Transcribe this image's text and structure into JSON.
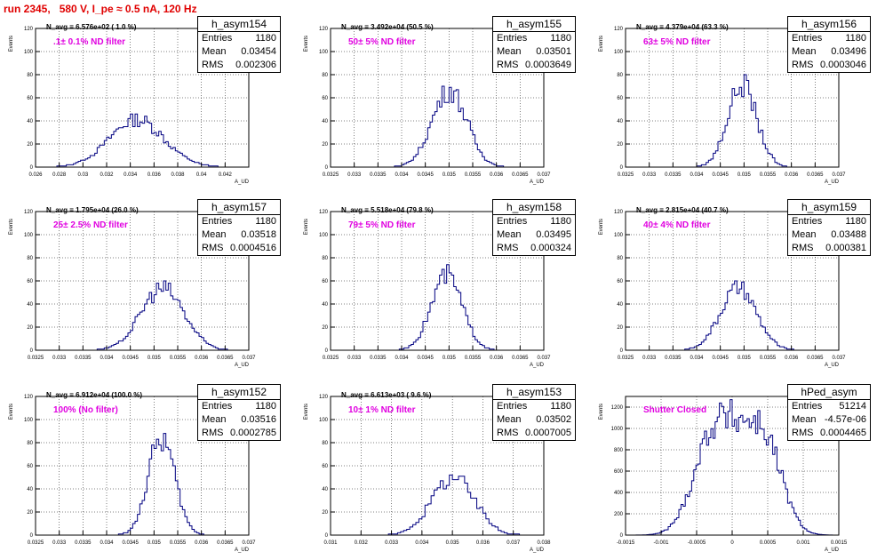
{
  "page": {
    "title": "run 2345,   580 V, I_pe ≈ 0.5 nA, 120 Hz"
  },
  "chart_data": [
    {
      "type": "bar",
      "name": "h_asym154",
      "xlabel": "A_UD",
      "ylabel": "Events",
      "xlim": [
        0.026,
        0.044
      ],
      "ylim": [
        0,
        120
      ],
      "xticks": [
        "0.026",
        "0.028",
        "0.03",
        "0.032",
        "0.034",
        "0.036",
        "0.038",
        "0.04",
        "0.042"
      ],
      "yticks": [
        "0",
        "20",
        "40",
        "60",
        "80",
        "100",
        "120"
      ],
      "grid": true,
      "navg": "N_avg = 6.576e+02 ( 1.0 %)",
      "filter": ".1± 0.1% ND filter",
      "stats": {
        "Entries": "1180",
        "Mean": "0.03454",
        "RMS": "0.002306"
      },
      "mean": 0.03454,
      "rms": 0.002306,
      "entries": 1180,
      "binw": 0.0002
    },
    {
      "type": "bar",
      "name": "h_asym155",
      "xlabel": "A_UD",
      "ylabel": "Events",
      "xlim": [
        0.0325,
        0.037
      ],
      "ylim": [
        0,
        120
      ],
      "xticks": [
        "0.0325",
        "0.033",
        "0.0335",
        "0.034",
        "0.0345",
        "0.035",
        "0.0355",
        "0.036",
        "0.0365",
        "0.037"
      ],
      "yticks": [
        "0",
        "20",
        "40",
        "60",
        "80",
        "100",
        "120"
      ],
      "grid": true,
      "navg": "N_avg = 3.492e+04 (50.5 %)",
      "filter": "50± 5% ND filter",
      "stats": {
        "Entries": "1180",
        "Mean": "0.03501",
        "RMS": "0.0003649"
      },
      "mean": 0.03501,
      "rms": 0.0003649,
      "entries": 1180,
      "binw": 5e-05
    },
    {
      "type": "bar",
      "name": "h_asym156",
      "xlabel": "A_UD",
      "ylabel": "Events",
      "xlim": [
        0.0325,
        0.037
      ],
      "ylim": [
        0,
        120
      ],
      "xticks": [
        "0.0325",
        "0.033",
        "0.0335",
        "0.034",
        "0.0345",
        "0.035",
        "0.0355",
        "0.036",
        "0.0365",
        "0.037"
      ],
      "yticks": [
        "0",
        "20",
        "40",
        "60",
        "80",
        "100",
        "120"
      ],
      "grid": true,
      "navg": "N_avg = 4.379e+04 (63.3 %)",
      "filter": "63± 5% ND filter",
      "stats": {
        "Entries": "1180",
        "Mean": "0.03496",
        "RMS": "0.0003046"
      },
      "mean": 0.03496,
      "rms": 0.0003046,
      "entries": 1180,
      "binw": 5e-05
    },
    {
      "type": "bar",
      "name": "h_asym157",
      "xlabel": "A_UD",
      "ylabel": "Events",
      "xlim": [
        0.0325,
        0.037
      ],
      "ylim": [
        0,
        120
      ],
      "xticks": [
        "0.0325",
        "0.033",
        "0.0335",
        "0.034",
        "0.0345",
        "0.035",
        "0.0355",
        "0.036",
        "0.0365",
        "0.037"
      ],
      "yticks": [
        "0",
        "20",
        "40",
        "60",
        "80",
        "100",
        "120"
      ],
      "grid": true,
      "navg": "N_avg = 1.795e+04 (26.0 %)",
      "filter": "25± 2.5% ND filter",
      "stats": {
        "Entries": "1180",
        "Mean": "0.03518",
        "RMS": "0.0004516"
      },
      "mean": 0.03518,
      "rms": 0.0004516,
      "entries": 1180,
      "binw": 5e-05
    },
    {
      "type": "bar",
      "name": "h_asym158",
      "xlabel": "A_UD",
      "ylabel": "Events",
      "xlim": [
        0.0325,
        0.037
      ],
      "ylim": [
        0,
        120
      ],
      "xticks": [
        "0.0325",
        "0.033",
        "0.0335",
        "0.034",
        "0.0345",
        "0.035",
        "0.0355",
        "0.036",
        "0.0365",
        "0.037"
      ],
      "yticks": [
        "0",
        "20",
        "40",
        "60",
        "80",
        "100",
        "120"
      ],
      "grid": true,
      "navg": "N_avg = 5.518e+04 (79.8 %)",
      "filter": "79± 5% ND filter",
      "stats": {
        "Entries": "1180",
        "Mean": "0.03495",
        "RMS": "0.000324"
      },
      "mean": 0.03495,
      "rms": 0.000324,
      "entries": 1180,
      "binw": 5e-05
    },
    {
      "type": "bar",
      "name": "h_asym159",
      "xlabel": "A_UD",
      "ylabel": "Events",
      "xlim": [
        0.0325,
        0.037
      ],
      "ylim": [
        0,
        120
      ],
      "xticks": [
        "0.0325",
        "0.033",
        "0.0335",
        "0.034",
        "0.0345",
        "0.035",
        "0.0355",
        "0.036",
        "0.0365",
        "0.037"
      ],
      "yticks": [
        "0",
        "20",
        "40",
        "60",
        "80",
        "100",
        "120"
      ],
      "grid": true,
      "navg": "N_avg = 2.815e+04 (40.7 %)",
      "filter": "40± 4% ND filter",
      "stats": {
        "Entries": "1180",
        "Mean": "0.03488",
        "RMS": "0.000381"
      },
      "mean": 0.03488,
      "rms": 0.000381,
      "entries": 1180,
      "binw": 5e-05
    },
    {
      "type": "bar",
      "name": "h_asym152",
      "xlabel": "A_UD",
      "ylabel": "Events",
      "xlim": [
        0.0325,
        0.037
      ],
      "ylim": [
        0,
        120
      ],
      "xticks": [
        "0.0325",
        "0.033",
        "0.0335",
        "0.034",
        "0.0345",
        "0.035",
        "0.0355",
        "0.036",
        "0.0365",
        "0.037"
      ],
      "yticks": [
        "0",
        "20",
        "40",
        "60",
        "80",
        "100",
        "120"
      ],
      "grid": true,
      "navg": "N_avg = 6.912e+04 (100.0 %)",
      "filter": "100% (No filter)",
      "stats": {
        "Entries": "1180",
        "Mean": "0.03516",
        "RMS": "0.0002785"
      },
      "mean": 0.03516,
      "rms": 0.0002785,
      "entries": 1180,
      "binw": 5e-05
    },
    {
      "type": "bar",
      "name": "h_asym153",
      "xlabel": "A_UD",
      "ylabel": "Events",
      "xlim": [
        0.031,
        0.038
      ],
      "ylim": [
        0,
        120
      ],
      "xticks": [
        "0.031",
        "0.032",
        "0.033",
        "0.034",
        "0.035",
        "0.036",
        "0.037",
        "0.038"
      ],
      "yticks": [
        "0",
        "20",
        "40",
        "60",
        "80",
        "100",
        "120"
      ],
      "grid": true,
      "navg": "N_avg = 6.613e+03 ( 9.6 %)",
      "filter": "10± 1% ND filter",
      "stats": {
        "Entries": "1180",
        "Mean": "0.03502",
        "RMS": "0.0007005"
      },
      "mean": 0.03502,
      "rms": 0.0007005,
      "entries": 1180,
      "binw": 0.0001
    },
    {
      "type": "bar",
      "name": "hPed_asym",
      "xlabel": "A_UD",
      "ylabel": "Events",
      "xlim": [
        -0.0015,
        0.0015
      ],
      "ylim": [
        0,
        1300
      ],
      "xticks": [
        "-0.0015",
        "-0.001",
        "-0.0005",
        "0",
        "0.0005",
        "0.001",
        "0.0015"
      ],
      "yticks": [
        "0",
        "200",
        "400",
        "600",
        "800",
        "1000",
        "1200"
      ],
      "grid": true,
      "navg": "",
      "filter": "Shutter Closed",
      "stats": {
        "Entries": "51214",
        "Mean": "-4.57e-06",
        "RMS": "0.0004465"
      },
      "mean": -4.57e-06,
      "rms": 0.0004465,
      "entries": 51214,
      "binw": 3e-05,
      "bimodal": true
    }
  ]
}
